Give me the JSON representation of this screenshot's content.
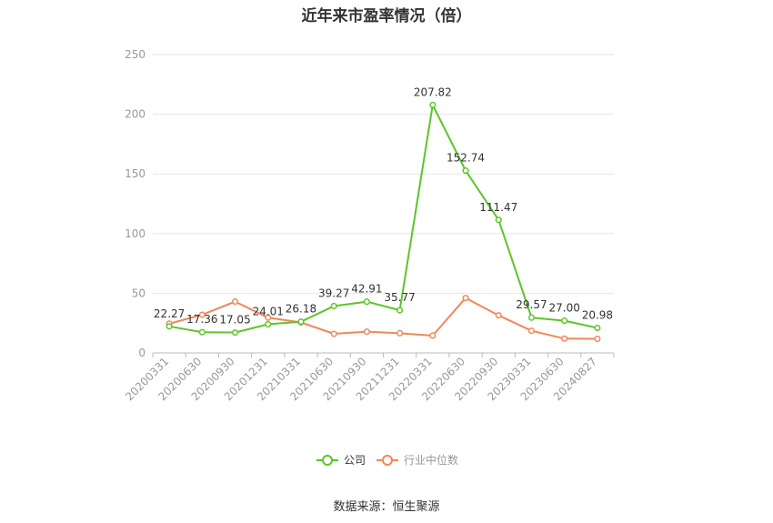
{
  "title": "近年来市盈率情况（倍）",
  "source": "数据来源：恒生聚源",
  "chart_data": {
    "type": "line",
    "title": "近年来市盈率情况（倍）",
    "categories": [
      "20200331",
      "20200630",
      "20200930",
      "20201231",
      "20210331",
      "20210630",
      "20210930",
      "20211231",
      "20220331",
      "20220630",
      "20220930",
      "20230331",
      "20230630",
      "20240827"
    ],
    "yticks": [
      "0",
      "50",
      "100",
      "150",
      "200",
      "250"
    ],
    "ylim": [
      0,
      250
    ],
    "grid": true,
    "legend_position": "bottom-center",
    "series": [
      {
        "name": "公司",
        "color": "#5cc52a",
        "values": [
          22.27,
          17.36,
          17.05,
          24.01,
          26.18,
          39.27,
          42.91,
          35.77,
          207.82,
          152.74,
          111.47,
          29.57,
          27.0,
          20.98
        ],
        "labels": [
          "22.27",
          "17.36",
          "17.05",
          "24.01",
          "26.18",
          "39.27",
          "42.91",
          "35.77",
          "207.82",
          "152.74",
          "111.47",
          "29.57",
          "27.00",
          "20.98"
        ]
      },
      {
        "name": "行业中位数",
        "color": "#f0875a",
        "values": [
          24.5,
          32.0,
          43.0,
          29.5,
          25.5,
          16.0,
          17.8,
          16.5,
          14.5,
          46.0,
          31.5,
          18.5,
          12.0,
          11.8
        ]
      }
    ]
  }
}
